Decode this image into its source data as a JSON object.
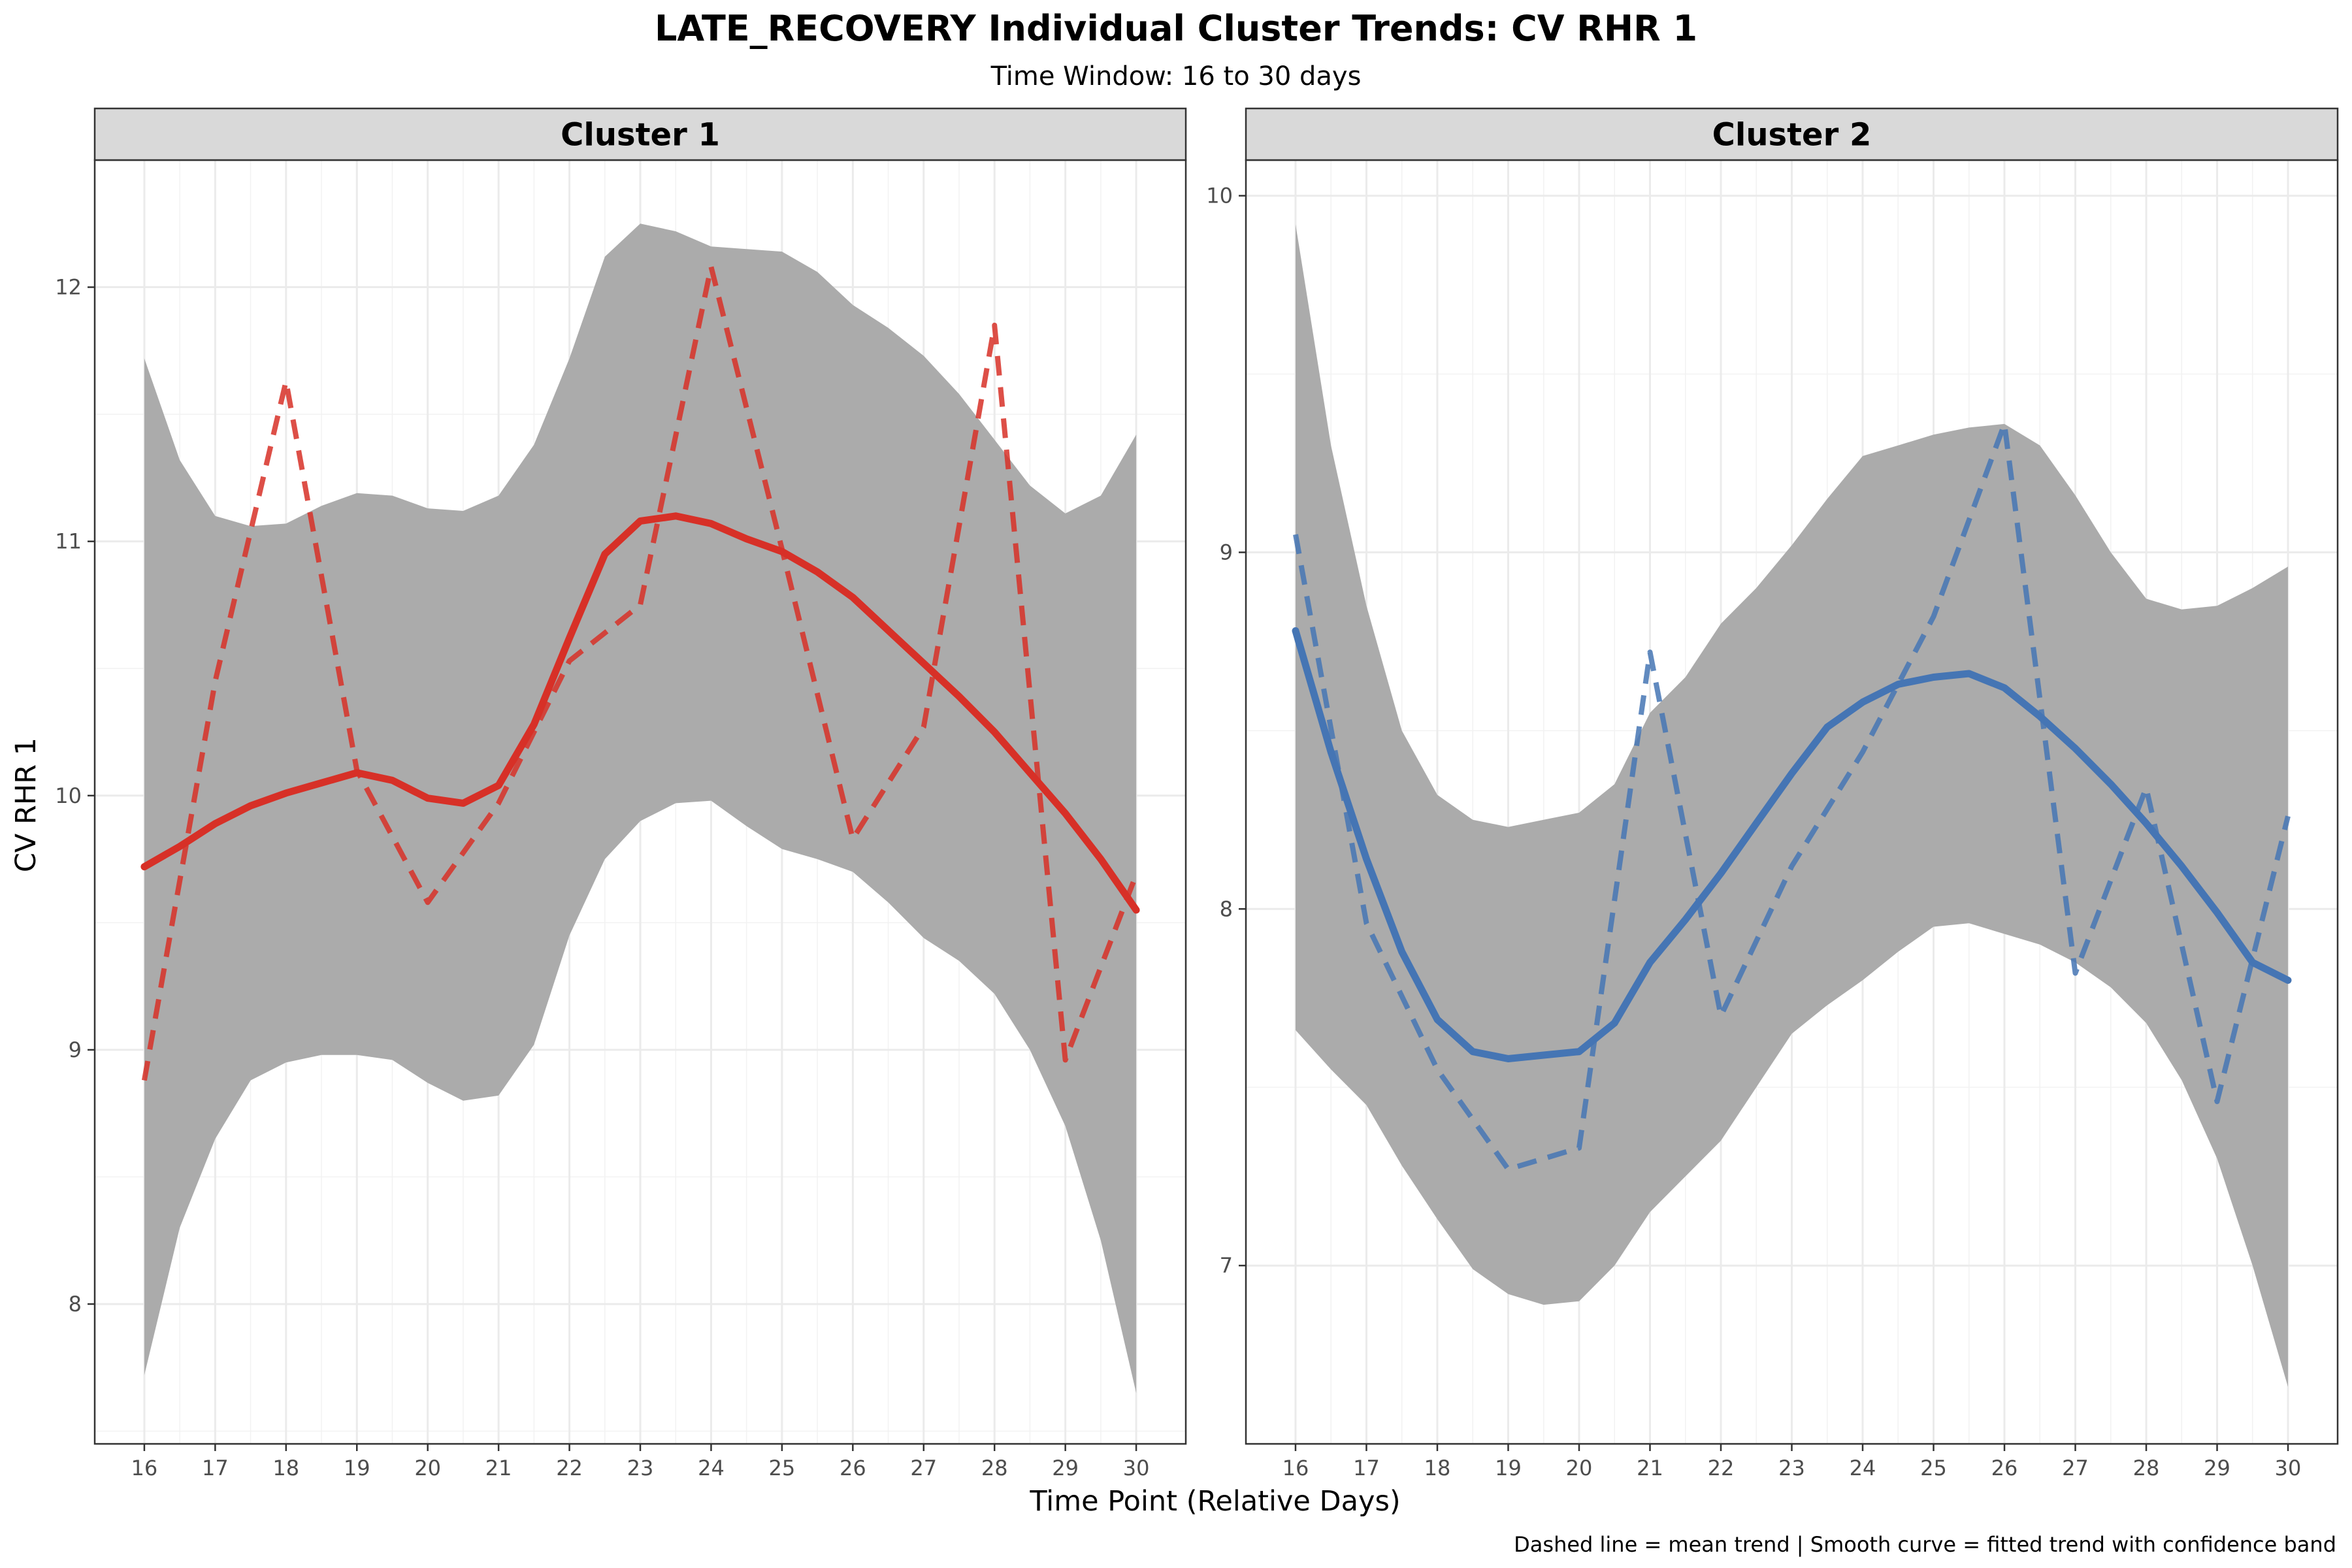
{
  "chart_data": {
    "type": "line",
    "title": "LATE_RECOVERY Individual Cluster Trends: CV RHR 1",
    "subtitle": "Time Window: 16 to 30 days",
    "xlabel": "Time Point (Relative Days)",
    "ylabel": "CV RHR 1",
    "caption": "Dashed line = mean trend | Smooth curve = fitted trend with confidence band",
    "grid": true,
    "panels": [
      {
        "name": "Cluster 1",
        "color": "#d73027",
        "xlim": [
          15.3,
          30.7
        ],
        "ylim": [
          7.45,
          12.5
        ],
        "x_ticks": [
          16,
          17,
          18,
          19,
          20,
          21,
          22,
          23,
          24,
          25,
          26,
          27,
          28,
          29,
          30
        ],
        "y_ticks": [
          8,
          9,
          10,
          11,
          12
        ],
        "mean_trend": {
          "x": [
            16,
            17,
            18,
            19,
            20,
            21,
            22,
            23,
            24,
            25,
            26,
            27,
            28,
            29,
            30
          ],
          "y": [
            8.88,
            10.45,
            11.63,
            10.1,
            9.58,
            9.97,
            10.53,
            10.75,
            12.08,
            10.97,
            9.83,
            10.27,
            11.85,
            8.96,
            9.69
          ]
        },
        "smooth_fit": {
          "x": [
            16,
            16.5,
            17,
            17.5,
            18,
            18.5,
            19,
            19.5,
            20,
            20.5,
            21,
            21.5,
            22,
            22.5,
            23,
            23.5,
            24,
            24.5,
            25,
            25.5,
            26,
            26.5,
            27,
            27.5,
            28,
            28.5,
            29,
            29.5,
            30
          ],
          "y": [
            9.72,
            9.8,
            9.89,
            9.96,
            10.01,
            10.05,
            10.09,
            10.06,
            9.99,
            9.97,
            10.04,
            10.28,
            10.62,
            10.95,
            11.08,
            11.1,
            11.07,
            11.01,
            10.96,
            10.88,
            10.78,
            10.65,
            10.52,
            10.39,
            10.25,
            10.09,
            9.93,
            9.75,
            9.55
          ]
        },
        "band_lower": [
          7.72,
          8.3,
          8.65,
          8.88,
          8.95,
          8.98,
          8.98,
          8.96,
          8.87,
          8.8,
          8.82,
          9.02,
          9.45,
          9.75,
          9.9,
          9.97,
          9.98,
          9.88,
          9.79,
          9.75,
          9.7,
          9.58,
          9.44,
          9.35,
          9.22,
          9.0,
          8.7,
          8.25,
          7.65
        ],
        "band_upper": [
          11.72,
          11.32,
          11.1,
          11.06,
          11.07,
          11.14,
          11.19,
          11.18,
          11.13,
          11.12,
          11.18,
          11.38,
          11.72,
          12.12,
          12.25,
          12.22,
          12.16,
          12.15,
          12.14,
          12.06,
          11.93,
          11.84,
          11.73,
          11.58,
          11.4,
          11.22,
          11.11,
          11.18,
          11.42
        ]
      },
      {
        "name": "Cluster 2",
        "color": "#4575b4",
        "xlim": [
          15.3,
          30.7
        ],
        "ylim": [
          6.5,
          10.1
        ],
        "x_ticks": [
          16,
          17,
          18,
          19,
          20,
          21,
          22,
          23,
          24,
          25,
          26,
          27,
          28,
          29,
          30
        ],
        "y_ticks": [
          7,
          8,
          9,
          10
        ],
        "mean_trend": {
          "x": [
            16,
            17,
            18,
            19,
            20,
            21,
            22,
            23,
            24,
            25,
            26,
            27,
            28,
            29,
            30
          ],
          "y": [
            9.05,
            7.96,
            7.55,
            7.27,
            7.33,
            8.72,
            7.7,
            8.12,
            8.44,
            8.82,
            9.36,
            7.82,
            8.34,
            7.46,
            8.26
          ]
        },
        "smooth_fit": {
          "x": [
            16,
            16.5,
            17,
            17.5,
            18,
            18.5,
            19,
            19.5,
            20,
            20.5,
            21,
            21.5,
            22,
            22.5,
            23,
            23.5,
            24,
            24.5,
            25,
            25.5,
            26,
            26.5,
            27,
            27.5,
            28,
            28.5,
            29,
            29.5,
            30
          ],
          "y": [
            8.78,
            8.44,
            8.14,
            7.88,
            7.69,
            7.6,
            7.58,
            7.59,
            7.6,
            7.68,
            7.85,
            7.97,
            8.1,
            8.24,
            8.38,
            8.51,
            8.58,
            8.63,
            8.65,
            8.66,
            8.62,
            8.54,
            8.45,
            8.35,
            8.24,
            8.12,
            7.99,
            7.85,
            7.8
          ]
        },
        "band_lower": [
          7.66,
          7.55,
          7.45,
          7.28,
          7.13,
          6.99,
          6.92,
          6.89,
          6.9,
          7.0,
          7.15,
          7.25,
          7.35,
          7.5,
          7.65,
          7.73,
          7.8,
          7.88,
          7.95,
          7.96,
          7.93,
          7.9,
          7.85,
          7.78,
          7.68,
          7.52,
          7.3,
          7.0,
          6.66
        ],
        "band_upper": [
          9.92,
          9.3,
          8.85,
          8.5,
          8.32,
          8.25,
          8.23,
          8.25,
          8.27,
          8.35,
          8.55,
          8.65,
          8.8,
          8.9,
          9.02,
          9.15,
          9.27,
          9.3,
          9.33,
          9.35,
          9.36,
          9.3,
          9.16,
          9.0,
          8.87,
          8.84,
          8.85,
          8.9,
          8.96
        ]
      }
    ]
  }
}
